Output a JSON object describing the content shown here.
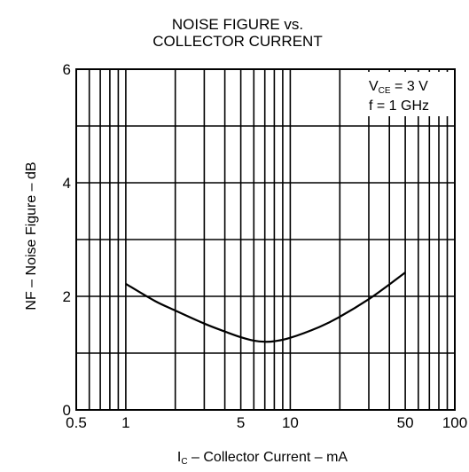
{
  "chart_data": {
    "type": "line",
    "title_lines": [
      "NOISE FIGURE vs.",
      "COLLECTOR CURRENT"
    ],
    "xlabel": "Ic – Collector Current – mA",
    "xlabel_main": "I",
    "xlabel_sub": "C",
    "xlabel_rest": " – Collector Current – mA",
    "ylabel": "NF – Noise Figure – dB",
    "x_scale": "log",
    "xlim": [
      0.5,
      100
    ],
    "ylim": [
      0,
      6
    ],
    "grid": true,
    "x_ticks": [
      {
        "value": 0.5,
        "label": "0.5"
      },
      {
        "value": 1,
        "label": "1"
      },
      {
        "value": 5,
        "label": "5"
      },
      {
        "value": 10,
        "label": "10"
      },
      {
        "value": 50,
        "label": "50"
      },
      {
        "value": 100,
        "label": "100"
      }
    ],
    "y_ticks": [
      {
        "value": 0,
        "label": "0"
      },
      {
        "value": 2,
        "label": "2"
      },
      {
        "value": 4,
        "label": "4"
      },
      {
        "value": 6,
        "label": "6"
      }
    ],
    "x_gridlines": [
      0.6,
      0.7,
      0.8,
      0.9,
      1,
      2,
      3,
      4,
      5,
      6,
      7,
      8,
      9,
      10,
      20,
      30,
      40,
      50,
      60,
      70,
      80,
      90
    ],
    "y_gridlines": [
      1,
      2,
      3,
      4,
      5
    ],
    "conditions": {
      "line1_main": "V",
      "line1_sub": "CE",
      "line1_rest": " = 3 V",
      "line2": "f = 1 GHz",
      "position": "top-right"
    },
    "series": [
      {
        "x": [
          1,
          1.5,
          2,
          3,
          4,
          5,
          6,
          7,
          8,
          10,
          15,
          20,
          30,
          40,
          50
        ],
        "y": [
          2.22,
          1.92,
          1.75,
          1.52,
          1.38,
          1.28,
          1.22,
          1.2,
          1.21,
          1.27,
          1.46,
          1.64,
          1.95,
          2.21,
          2.42
        ]
      }
    ]
  }
}
